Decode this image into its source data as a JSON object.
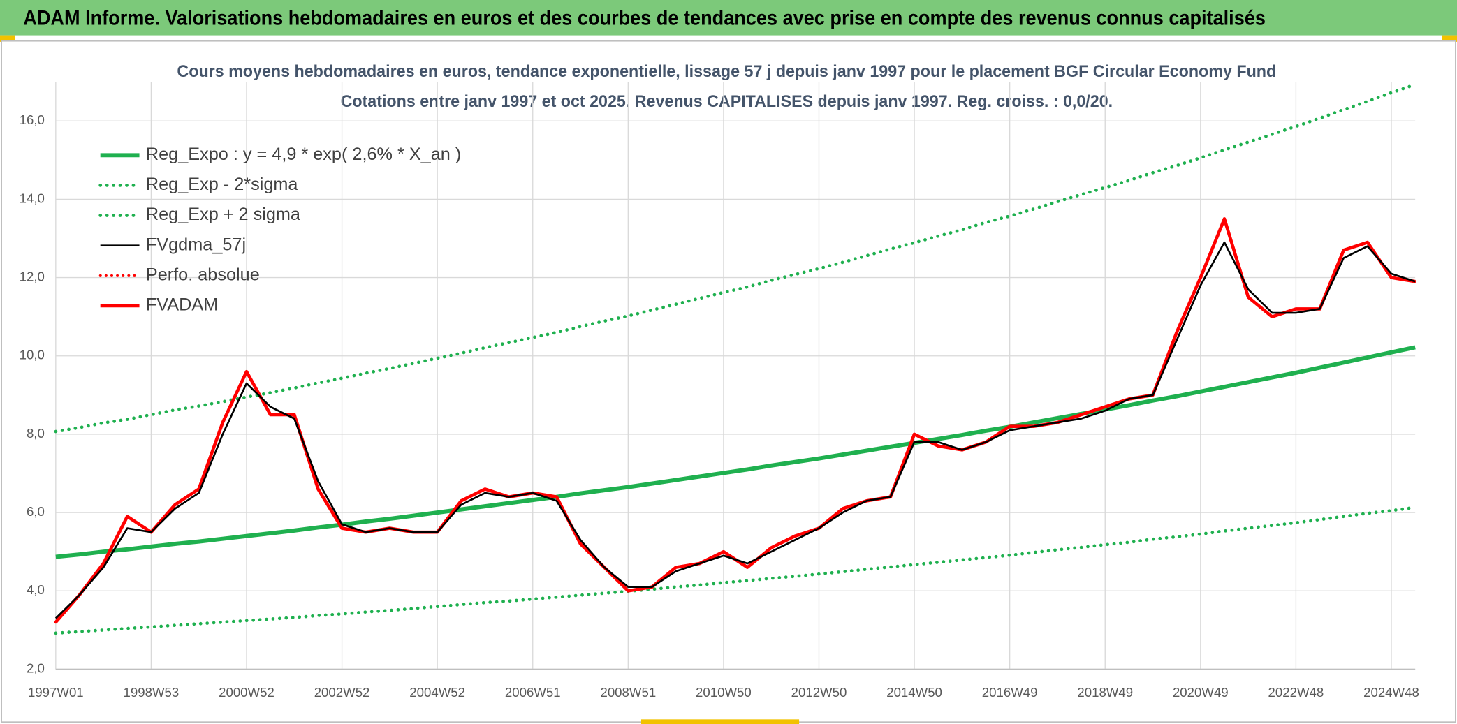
{
  "banner": "ADAM Informe. Valorisations hebdomadaires en euros et des courbes de tendances avec prise en compte des revenus connus capitalisés",
  "chart_data": {
    "type": "line",
    "title": "Cours moyens hebdomadaires en euros, tendance exponentielle, lissage 57 j depuis janv 1997 pour le placement BGF Circular Economy Fund",
    "subtitle": "Cotations entre janv 1997 et oct 2025. Revenus CAPITALISES depuis janv 1997. Reg. croiss. : 0,0/20.",
    "categories": [
      "1997W01",
      null,
      null,
      null,
      "1998W53",
      null,
      null,
      null,
      "2000W52",
      null,
      null,
      null,
      "2002W52",
      null,
      null,
      null,
      "2004W52",
      null,
      null,
      null,
      "2006W51",
      null,
      null,
      null,
      "2008W51",
      null,
      null,
      null,
      "2010W50",
      null,
      null,
      null,
      "2012W50",
      null,
      null,
      null,
      "2014W50",
      null,
      null,
      null,
      "2016W49",
      null,
      null,
      null,
      "2018W49",
      null,
      null,
      null,
      "2020W49",
      null,
      null,
      null,
      "2022W48",
      null,
      null,
      null,
      "2024W48",
      null
    ],
    "ylim": [
      2,
      17
    ],
    "yticks": [
      {
        "value": 2,
        "label": "2,0"
      },
      {
        "value": 4,
        "label": "4,0"
      },
      {
        "value": 6,
        "label": "6,0"
      },
      {
        "value": 8,
        "label": "8,0"
      },
      {
        "value": 10,
        "label": "10,0"
      },
      {
        "value": 12,
        "label": "12,0"
      },
      {
        "value": 14,
        "label": "14,0"
      },
      {
        "value": 16,
        "label": "16,0"
      }
    ],
    "grid": true,
    "legend": "upper left",
    "series": [
      {
        "name": "Reg_Expo : y = 4,9 * exp( 2,6% *  X_an )",
        "color": "#1fb04f",
        "dash": "solid",
        "line_width": 4.5,
        "values": [
          4.87,
          4.93,
          5.0,
          5.06,
          5.13,
          5.2,
          5.26,
          5.33,
          5.4,
          5.47,
          5.54,
          5.62,
          5.69,
          5.77,
          5.84,
          5.92,
          6.0,
          6.08,
          6.16,
          6.24,
          6.32,
          6.4,
          6.49,
          6.57,
          6.65,
          6.74,
          6.83,
          6.92,
          7.01,
          7.1,
          7.2,
          7.29,
          7.38,
          7.48,
          7.58,
          7.68,
          7.78,
          7.88,
          7.98,
          8.09,
          8.19,
          8.3,
          8.41,
          8.52,
          8.63,
          8.74,
          8.86,
          8.97,
          9.09,
          9.21,
          9.33,
          9.45,
          9.57,
          9.7,
          9.83,
          9.96,
          10.09,
          10.22
        ]
      },
      {
        "name": "Reg_Exp - 2*sigma",
        "color": "#1fb04f",
        "dash": "dotted",
        "line_width": 3.5,
        "values": [
          2.92,
          2.96,
          3.0,
          3.04,
          3.08,
          3.12,
          3.16,
          3.2,
          3.24,
          3.28,
          3.32,
          3.37,
          3.41,
          3.46,
          3.5,
          3.55,
          3.6,
          3.65,
          3.7,
          3.74,
          3.79,
          3.84,
          3.89,
          3.94,
          3.99,
          4.04,
          4.1,
          4.15,
          4.21,
          4.26,
          4.32,
          4.37,
          4.43,
          4.49,
          4.55,
          4.61,
          4.67,
          4.73,
          4.79,
          4.85,
          4.91,
          4.98,
          5.05,
          5.11,
          5.18,
          5.24,
          5.32,
          5.38,
          5.45,
          5.53,
          5.6,
          5.67,
          5.74,
          5.82,
          5.9,
          5.98,
          6.05,
          6.13
        ]
      },
      {
        "name": "Reg_Exp + 2 sigma",
        "color": "#1fb04f",
        "dash": "dotted",
        "line_width": 3.5,
        "values": [
          8.07,
          8.17,
          8.29,
          8.38,
          8.5,
          8.62,
          8.72,
          8.83,
          8.95,
          9.06,
          9.18,
          9.31,
          9.43,
          9.56,
          9.68,
          9.81,
          9.94,
          10.07,
          10.21,
          10.34,
          10.47,
          10.6,
          10.75,
          10.89,
          11.02,
          11.17,
          11.32,
          11.47,
          11.62,
          11.76,
          11.93,
          12.08,
          12.23,
          12.39,
          12.56,
          12.73,
          12.89,
          13.06,
          13.22,
          13.41,
          13.57,
          13.75,
          13.94,
          14.12,
          14.3,
          14.48,
          14.68,
          14.86,
          15.06,
          15.26,
          15.46,
          15.66,
          15.86,
          16.07,
          16.29,
          16.5,
          16.72,
          16.93
        ]
      },
      {
        "name": "FVgdma_57j",
        "color": "#000000",
        "dash": "solid",
        "line_width": 2,
        "values": [
          3.3,
          3.9,
          4.6,
          5.6,
          5.5,
          6.1,
          6.5,
          8.0,
          9.3,
          8.7,
          8.4,
          6.8,
          5.7,
          5.5,
          5.6,
          5.5,
          5.5,
          6.2,
          6.5,
          6.4,
          6.5,
          6.3,
          5.3,
          4.6,
          4.1,
          4.1,
          4.5,
          4.7,
          4.9,
          4.7,
          5.0,
          5.3,
          5.6,
          6.0,
          6.3,
          6.4,
          7.8,
          7.8,
          7.6,
          7.8,
          8.1,
          8.2,
          8.3,
          8.4,
          8.6,
          8.9,
          9.0,
          10.4,
          11.8,
          12.9,
          11.7,
          11.1,
          11.1,
          11.2,
          12.5,
          12.8,
          12.1,
          11.9
        ]
      },
      {
        "name": "Perfo. absolue",
        "color": "#ff0000",
        "dash": "dotted",
        "line_width": 3,
        "values": [
          3.2,
          3.9,
          4.7,
          5.9,
          5.5,
          6.2,
          6.6,
          8.3,
          9.6,
          8.5,
          8.5,
          6.6,
          5.6,
          5.5,
          5.6,
          5.5,
          5.5,
          6.3,
          6.6,
          6.4,
          6.5,
          6.4,
          5.2,
          4.6,
          4.0,
          4.1,
          4.6,
          4.7,
          5.0,
          4.6,
          5.1,
          5.4,
          5.6,
          6.1,
          6.3,
          6.4,
          8.0,
          7.7,
          7.6,
          7.8,
          8.2,
          8.2,
          8.3,
          8.5,
          8.7,
          8.9,
          9.0,
          10.6,
          12.0,
          13.5,
          11.5,
          11.0,
          11.2,
          11.2,
          12.7,
          12.9,
          12.0,
          11.9
        ]
      },
      {
        "name": "FVADAM",
        "color": "#ff0000",
        "dash": "solid",
        "line_width": 3.5,
        "values": [
          3.2,
          3.9,
          4.7,
          5.9,
          5.5,
          6.2,
          6.6,
          8.3,
          9.6,
          8.5,
          8.5,
          6.6,
          5.6,
          5.5,
          5.6,
          5.5,
          5.5,
          6.3,
          6.6,
          6.4,
          6.5,
          6.4,
          5.2,
          4.6,
          4.0,
          4.1,
          4.6,
          4.7,
          5.0,
          4.6,
          5.1,
          5.4,
          5.6,
          6.1,
          6.3,
          6.4,
          8.0,
          7.7,
          7.6,
          7.8,
          8.2,
          8.2,
          8.3,
          8.5,
          8.7,
          8.9,
          9.0,
          10.6,
          12.0,
          13.5,
          11.5,
          11.0,
          11.2,
          11.2,
          12.7,
          12.9,
          12.0,
          11.9
        ]
      }
    ]
  }
}
